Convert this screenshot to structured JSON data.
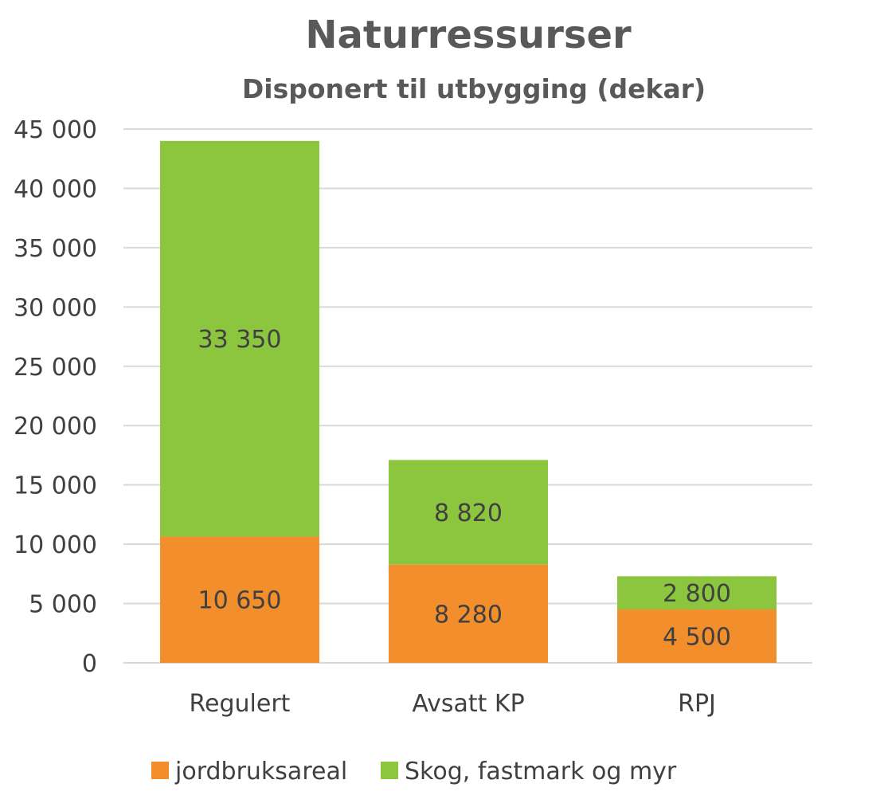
{
  "chart_data": {
    "type": "bar",
    "stacked": true,
    "title": "Naturressurser",
    "subtitle": "Disponert til utbygging (dekar)",
    "categories": [
      "Regulert",
      "Avsatt KP",
      "RPJ"
    ],
    "series": [
      {
        "name": "jordbruksareal",
        "values": [
          10650,
          8280,
          4500
        ],
        "labels": [
          "10 650",
          "8 280",
          "4 500"
        ],
        "color": "#F28E2B"
      },
      {
        "name": "Skog, fastmark og myr",
        "values": [
          33350,
          8820,
          2800
        ],
        "labels": [
          "33 350",
          "8 820",
          "2 800"
        ],
        "color": "#8CC63F"
      }
    ],
    "ylim": [
      0,
      45000
    ],
    "yticks": [
      0,
      5000,
      10000,
      15000,
      20000,
      25000,
      30000,
      35000,
      40000,
      45000
    ],
    "ytick_labels": [
      "0",
      "5 000",
      "10 000",
      "15 000",
      "20 000",
      "25 000",
      "30 000",
      "35 000",
      "40 000",
      "45 000"
    ],
    "grid": true,
    "gridColor": "#D9D9D9",
    "legend": "bottom"
  }
}
